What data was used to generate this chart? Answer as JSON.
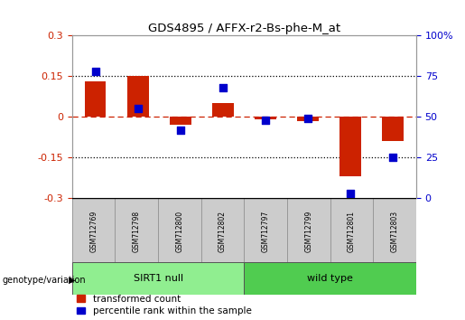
{
  "title": "GDS4895 / AFFX-r2-Bs-phe-M_at",
  "samples": [
    "GSM712769",
    "GSM712798",
    "GSM712800",
    "GSM712802",
    "GSM712797",
    "GSM712799",
    "GSM712801",
    "GSM712803"
  ],
  "red_bars": [
    0.13,
    0.15,
    -0.03,
    0.05,
    -0.01,
    -0.015,
    -0.22,
    -0.09
  ],
  "blue_dots": [
    78,
    55,
    42,
    68,
    48,
    49,
    3,
    25
  ],
  "ylim_left": [
    -0.3,
    0.3
  ],
  "ylim_right": [
    0,
    100
  ],
  "yticks_left": [
    -0.3,
    -0.15,
    0,
    0.15,
    0.3
  ],
  "yticks_right": [
    0,
    25,
    50,
    75,
    100
  ],
  "ytick_labels_left": [
    "-0.3",
    "-0.15",
    "0",
    "0.15",
    "0.3"
  ],
  "ytick_labels_right": [
    "0",
    "25",
    "50",
    "75",
    "100%"
  ],
  "group1_label": "SIRT1 null",
  "group2_label": "wild type",
  "group1_indices": [
    0,
    1,
    2,
    3
  ],
  "group2_indices": [
    4,
    5,
    6,
    7
  ],
  "group1_color": "#90EE90",
  "group2_color": "#50CC50",
  "genotype_label": "genotype/variation",
  "legend_red": "transformed count",
  "legend_blue": "percentile rank within the sample",
  "red_color": "#CC2200",
  "blue_color": "#0000CC",
  "bar_width": 0.5,
  "blue_marker_size": 40,
  "bg_color": "#FFFFFF"
}
